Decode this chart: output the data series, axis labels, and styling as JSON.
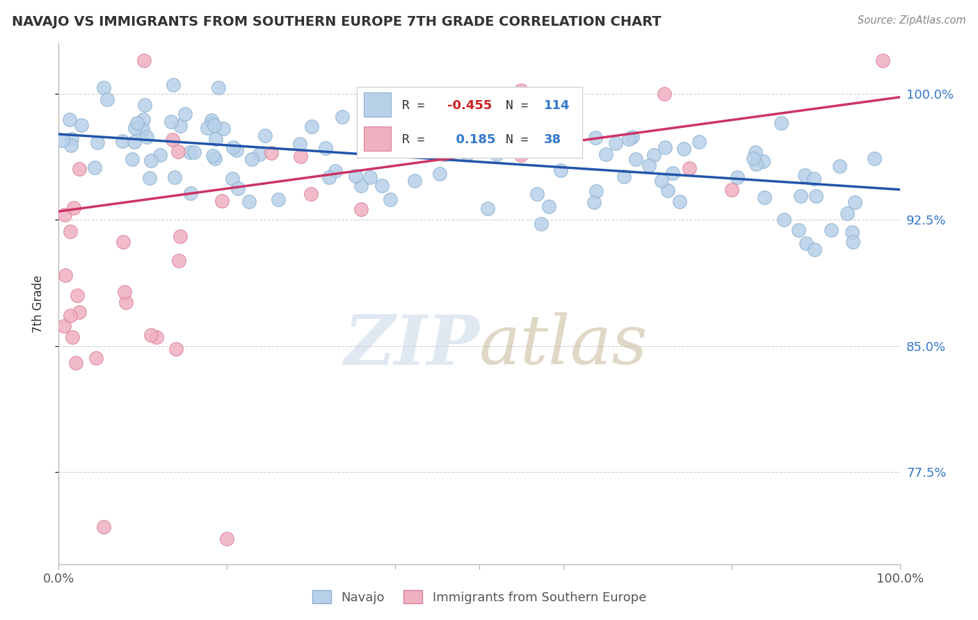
{
  "title": "NAVAJO VS IMMIGRANTS FROM SOUTHERN EUROPE 7TH GRADE CORRELATION CHART",
  "source": "Source: ZipAtlas.com",
  "ylabel": "7th Grade",
  "xlim": [
    0.0,
    1.0
  ],
  "ylim": [
    0.72,
    1.03
  ],
  "yticks": [
    0.775,
    0.85,
    0.925,
    1.0
  ],
  "ytick_labels": [
    "77.5%",
    "85.0%",
    "92.5%",
    "100.0%"
  ],
  "navajo_R": -0.455,
  "navajo_N": 114,
  "southern_europe_R": 0.185,
  "southern_europe_N": 38,
  "navajo_color": "#b8d0e8",
  "navajo_edge_color": "#8ab0d0",
  "southern_europe_color": "#f0b0c0",
  "southern_europe_edge_color": "#d88098",
  "navajo_line_color": "#2255aa",
  "southern_europe_line_color": "#cc3366",
  "background_color": "#ffffff",
  "legend_border_color": "#cccccc",
  "grid_color": "#cccccc",
  "r_label_color": "#333333",
  "r_value_neg_color": "#cc2222",
  "r_value_pos_color": "#3377cc",
  "n_label_color": "#333333",
  "n_value_color": "#3377cc",
  "ytick_color": "#3377cc",
  "xtick_color": "#555555",
  "title_color": "#333333",
  "source_color": "#888888",
  "ylabel_color": "#333333",
  "bottom_label_color": "#555555"
}
